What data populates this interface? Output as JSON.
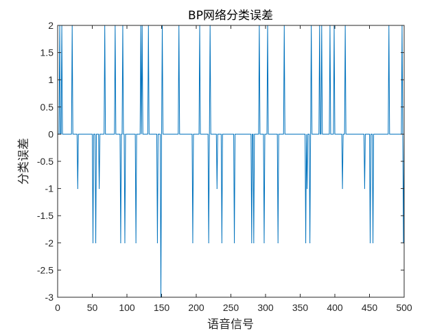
{
  "chart_data": {
    "type": "line",
    "title": "BP网络分类误差",
    "xlabel": "语音信号",
    "ylabel": "分类误差",
    "xlim": [
      0,
      500
    ],
    "ylim": [
      -3,
      2
    ],
    "xticks": [
      "0",
      "50",
      "100",
      "150",
      "200",
      "250",
      "300",
      "350",
      "400",
      "450",
      "500"
    ],
    "yticks": [
      "-3",
      "-2.5",
      "-2",
      "-1.5",
      "-1",
      "-0.5",
      "0",
      "0.5",
      "1",
      "1.5",
      "2"
    ],
    "grid": false,
    "series": [
      {
        "color": "#0072BD",
        "spikes": [
          [
            3,
            2
          ],
          [
            6,
            2
          ],
          [
            21,
            2
          ],
          [
            29,
            -1
          ],
          [
            51,
            -2
          ],
          [
            55,
            -2
          ],
          [
            60,
            -1
          ],
          [
            68,
            2
          ],
          [
            83,
            2
          ],
          [
            91,
            -2
          ],
          [
            94,
            2
          ],
          [
            97,
            -2
          ],
          [
            113,
            -2
          ],
          [
            120,
            2
          ],
          [
            122,
            2
          ],
          [
            131,
            2
          ],
          [
            144,
            -2
          ],
          [
            149,
            -3
          ],
          [
            151,
            2
          ],
          [
            175,
            2
          ],
          [
            195,
            -2
          ],
          [
            205,
            2
          ],
          [
            218,
            -2
          ],
          [
            220,
            2
          ],
          [
            230,
            -1
          ],
          [
            237,
            -2
          ],
          [
            255,
            -2
          ],
          [
            280,
            -2
          ],
          [
            283,
            -2
          ],
          [
            291,
            2
          ],
          [
            298,
            -2
          ],
          [
            303,
            2
          ],
          [
            318,
            -2
          ],
          [
            327,
            2
          ],
          [
            358,
            -2
          ],
          [
            360,
            -1
          ],
          [
            364,
            -2
          ],
          [
            366,
            2
          ],
          [
            378,
            2
          ],
          [
            381,
            2
          ],
          [
            393,
            2
          ],
          [
            399,
            2
          ],
          [
            411,
            -1
          ],
          [
            415,
            2
          ],
          [
            443,
            -1
          ],
          [
            451,
            -2
          ],
          [
            455,
            -2
          ],
          [
            478,
            2
          ],
          [
            497,
            2
          ],
          [
            499,
            -2
          ]
        ]
      }
    ]
  }
}
